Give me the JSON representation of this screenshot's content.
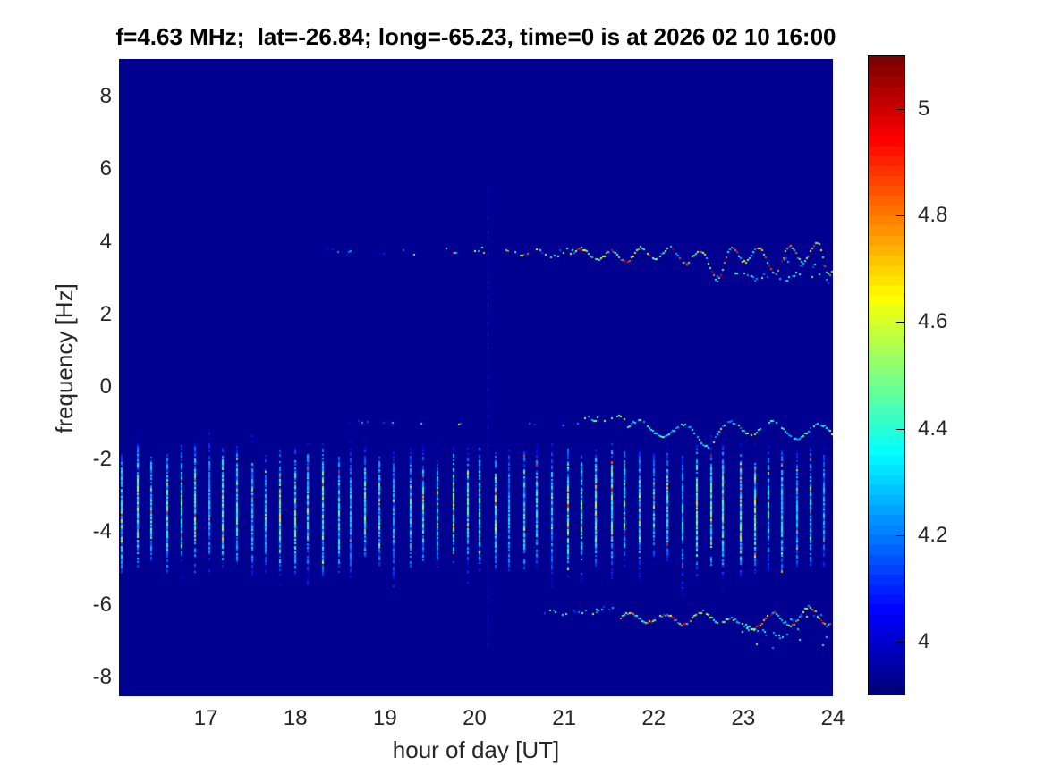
{
  "chart_data": {
    "type": "heatmap",
    "title": "f=4.63 MHz;  lat=-26.84; long=-65.23, time=0 is at 2026 02 10 16:00",
    "xlabel": "hour of day [UT]",
    "ylabel": "frequency [Hz]",
    "x_ticks": [
      17,
      18,
      19,
      20,
      21,
      22,
      23,
      24
    ],
    "y_ticks": [
      8,
      6,
      4,
      2,
      0,
      -2,
      -4,
      -6,
      -8
    ],
    "xlim": [
      16.03,
      24
    ],
    "ylim": [
      -8.52,
      9.04
    ],
    "grid": false,
    "legend": "none",
    "colormap": "jet",
    "colorbar": {
      "position": "right",
      "ticks": [
        5,
        4.8,
        4.6,
        4.4,
        4.2,
        4
      ],
      "range": [
        3.9,
        5.1
      ],
      "levels": 64
    },
    "background_value": 3.92,
    "features": {
      "pulse_train": {
        "description": "regular vertical pulse stripes roughly every 10 minutes",
        "t_start": 16.06,
        "t_end": 23.98,
        "period": 0.16,
        "f_top": -1.45,
        "f_bot": -5.0,
        "val_base": [
          4.05,
          4.5
        ],
        "hot": [
          0.09,
          4.55,
          5.0
        ]
      },
      "vertical_artifact": {
        "t": 20.14,
        "f_range": [
          -7.3,
          5.6
        ],
        "val": [
          3.97,
          4.1
        ],
        "density": 0.55
      },
      "traces": {
        "upper": {
          "segments": [
            {
              "t": [
                18.33,
                18.8
              ],
              "f": 3.72,
              "density": 0.28,
              "val": [
                4.02,
                4.3
              ],
              "jitter": 5,
              "wave": [
                0.1,
                0.1,
                0.24
              ]
            },
            {
              "t": [
                18.9,
                19.05
              ],
              "f": 3.7,
              "density": 0.14,
              "val": [
                4.02,
                4.25
              ],
              "jitter": 4
            },
            {
              "t": [
                19.2,
                19.8
              ],
              "f": 3.75,
              "density": 0.38,
              "val": [
                4.05,
                4.5
              ],
              "jitter": 6,
              "hot": [
                0.05,
                4.6,
                4.9
              ],
              "wave": [
                0.12,
                0.12,
                0.22
              ]
            },
            {
              "t": [
                19.8,
                20.12
              ],
              "f": 3.8,
              "density": 0.25,
              "val": [
                4.05,
                4.5
              ],
              "jitter": 11,
              "hot": [
                0.04,
                4.55,
                4.8
              ]
            },
            {
              "t": [
                20.1,
                20.22
              ],
              "f": 4.3,
              "density": 0.22,
              "val": [
                4.0,
                4.4
              ],
              "jitter": 9
            },
            {
              "t": [
                20.32,
                21.1
              ],
              "f": 3.7,
              "density": 0.5,
              "val": [
                4.1,
                4.65
              ],
              "jitter": 8,
              "hot": [
                0.12,
                4.7,
                5.0
              ],
              "wave": [
                0.1,
                0.12,
                0.3
              ]
            },
            {
              "t": [
                21.1,
                24.0
              ],
              "f": 3.66,
              "density": 0.92,
              "val": [
                4.2,
                4.7
              ],
              "jitter": 3,
              "hot": [
                0.32,
                4.7,
                5.08
              ],
              "wave": [
                0.12,
                0.3,
                0.33
              ],
              "dips": [
                [
                  22.72,
                  0.55,
                  0.1
                ],
                [
                  23.38,
                  0.22,
                  0.08
                ],
                [
                  23.92,
                  0.4,
                  0.06
                ]
              ]
            },
            {
              "t": [
                22.7,
                22.8
              ],
              "f": 3.0,
              "density": 0.45,
              "val": [
                4.0,
                4.45
              ],
              "jitter": 20
            },
            {
              "t": [
                22.88,
                23.98
              ],
              "f": 3.12,
              "slope": -0.14,
              "density": 0.42,
              "val": [
                4.12,
                4.5
              ],
              "jitter": 6,
              "wave": [
                0.08,
                0.08,
                0.3
              ]
            },
            {
              "t": [
                23.45,
                24.0
              ],
              "f": 3.5,
              "density": 0.35,
              "val": [
                4.05,
                4.6
              ],
              "jitter": 26
            }
          ]
        },
        "middle": {
          "segments": [
            {
              "t": [
                18.4,
                19.15
              ],
              "f": -0.95,
              "density": 0.11,
              "val": [
                4.0,
                4.3
              ],
              "jitter": 4
            },
            {
              "t": [
                19.2,
                19.85
              ],
              "f": -1.0,
              "density": 0.13,
              "val": [
                4.0,
                4.35
              ],
              "jitter": 4,
              "hot": [
                0.03,
                4.55,
                4.8
              ]
            },
            {
              "t": [
                20.5,
                21.15
              ],
              "f": -1.0,
              "density": 0.11,
              "val": [
                4.0,
                4.35
              ],
              "jitter": 5
            },
            {
              "t": [
                21.2,
                21.45
              ],
              "f": -0.85,
              "density": 0.5,
              "val": [
                4.15,
                4.6
              ],
              "jitter": 6,
              "hot": [
                0.1,
                4.65,
                4.95
              ]
            },
            {
              "t": [
                21.5,
                21.72
              ],
              "f": -0.8,
              "density": 0.5,
              "val": [
                4.15,
                4.6
              ],
              "jitter": 6,
              "hot": [
                0.12,
                4.7,
                5.0
              ]
            },
            {
              "t": [
                21.7,
                24.0
              ],
              "f": -1.15,
              "density": 0.85,
              "val": [
                4.18,
                4.5
              ],
              "jitter": 2.5,
              "hot": [
                0.08,
                4.55,
                4.75
              ],
              "wave": [
                0.18,
                0.22,
                0.5
              ],
              "dips": [
                [
                  22.6,
                  0.25,
                  0.12
                ]
              ]
            }
          ]
        },
        "lower": {
          "segments": [
            {
              "t": [
                20.3,
                20.6
              ],
              "f": -6.15,
              "density": 0.12,
              "val": [
                4.0,
                4.3
              ],
              "jitter": 3
            },
            {
              "t": [
                20.75,
                21.35
              ],
              "f": -6.2,
              "density": 0.3,
              "val": [
                4.08,
                4.5
              ],
              "jitter": 6,
              "hot": [
                0.05,
                4.55,
                4.8
              ]
            },
            {
              "t": [
                21.35,
                21.62
              ],
              "f": -6.1,
              "density": 0.4,
              "val": [
                4.1,
                4.55
              ],
              "jitter": 6
            },
            {
              "t": [
                21.62,
                24.0
              ],
              "f": -6.35,
              "density": 0.9,
              "val": [
                4.2,
                4.7
              ],
              "jitter": 3,
              "hot": [
                0.3,
                4.7,
                5.05
              ],
              "wave": [
                0.1,
                0.25,
                0.4
              ],
              "dips": [
                [
                  22.95,
                  0.32,
                  0.1
                ]
              ]
            },
            {
              "t": [
                22.6,
                24.0
              ],
              "f": -6.95,
              "density": 0.16,
              "val": [
                4.08,
                4.5
              ],
              "jitter": 22
            },
            {
              "t": [
                22.95,
                23.5
              ],
              "f": -6.55,
              "slope": -0.6,
              "density": 0.4,
              "val": [
                4.12,
                4.5
              ],
              "jitter": 5
            },
            {
              "t": [
                23.5,
                24.0
              ],
              "f": -6.45,
              "density": 0.4,
              "val": [
                4.12,
                4.6
              ],
              "jitter": 16
            }
          ]
        }
      }
    }
  }
}
